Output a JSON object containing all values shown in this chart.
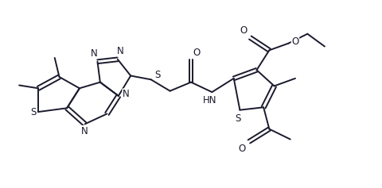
{
  "bg_color": "#ffffff",
  "line_color": "#1a1a2e",
  "line_width": 1.4,
  "font_size": 8.5,
  "figsize": [
    4.8,
    2.37
  ],
  "dpi": 100,
  "xlim": [
    0,
    10
  ],
  "ylim": [
    0,
    4.94
  ]
}
